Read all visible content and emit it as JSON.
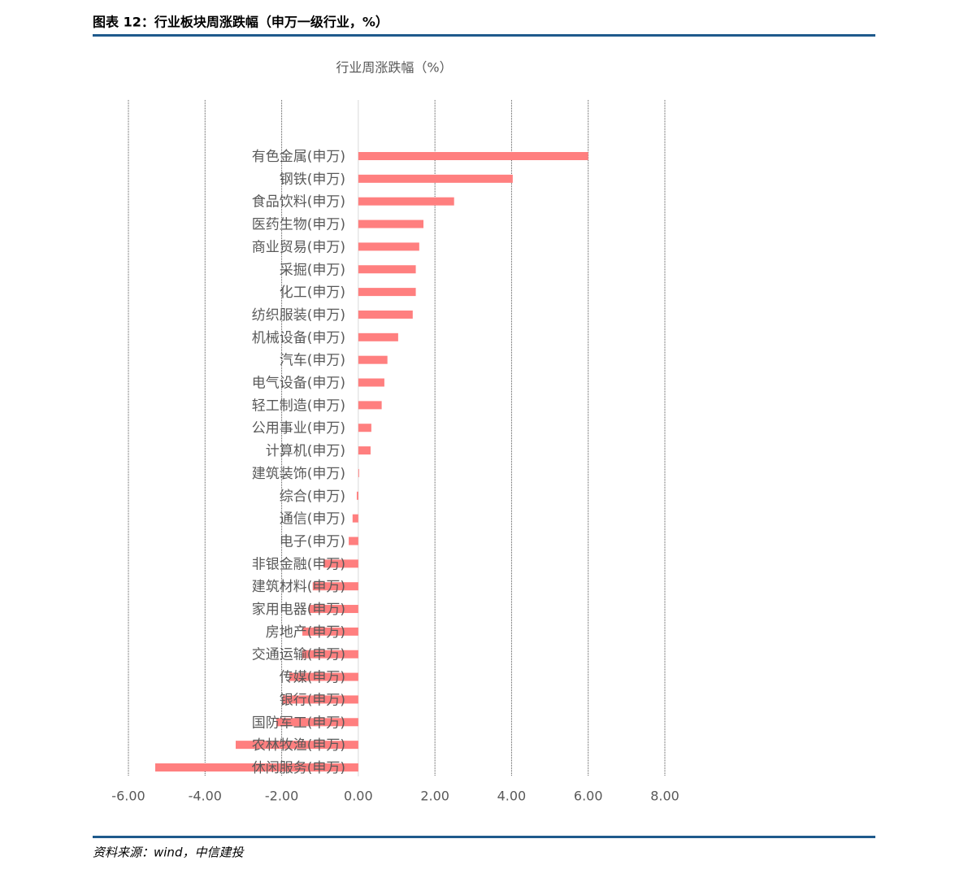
{
  "header": {
    "title": "图表 12：行业板块周涨跌幅（申万一级行业，%）"
  },
  "chart_data": {
    "type": "hbar",
    "title": "行业周涨跌幅（%）",
    "categories": [
      "有色金属(申万)",
      "钢铁(申万)",
      "食品饮料(申万)",
      "医药生物(申万)",
      "商业贸易(申万)",
      "采掘(申万)",
      "化工(申万)",
      "纺织服装(申万)",
      "机械设备(申万)",
      "汽车(申万)",
      "电气设备(申万)",
      "轻工制造(申万)",
      "公用事业(申万)",
      "计算机(申万)",
      "建筑装饰(申万)",
      "综合(申万)",
      "通信(申万)",
      "电子(申万)",
      "非银金融(申万)",
      "建筑材料(申万)",
      "家用电器(申万)",
      "房地产(申万)",
      "交通运输(申万)",
      "传媒(申万)",
      "银行(申万)",
      "国防军工(申万)",
      "农林牧渔(申万)",
      "休闲服务(申万)"
    ],
    "values": [
      6.0,
      4.03,
      2.5,
      1.7,
      1.59,
      1.5,
      1.5,
      1.42,
      1.04,
      0.76,
      0.68,
      0.61,
      0.34,
      0.32,
      0.02,
      -0.04,
      -0.15,
      -0.25,
      -0.91,
      -1.19,
      -1.29,
      -1.46,
      -1.46,
      -1.8,
      -1.97,
      -2.14,
      -3.2,
      -5.3
    ],
    "color": "#ff7f7f",
    "xlim": [
      -6,
      8
    ],
    "xticks": [
      {
        "value": -6,
        "label": "-6.00"
      },
      {
        "value": -4,
        "label": "-4.00"
      },
      {
        "value": -2,
        "label": "-2.00"
      },
      {
        "value": 0,
        "label": "0.00"
      },
      {
        "value": 2,
        "label": "2.00"
      },
      {
        "value": 4,
        "label": "4.00"
      },
      {
        "value": 6,
        "label": "6.00"
      },
      {
        "value": 8,
        "label": "8.00"
      }
    ],
    "grid": true
  },
  "footer": {
    "source": "资料来源：wind，中信建投"
  }
}
